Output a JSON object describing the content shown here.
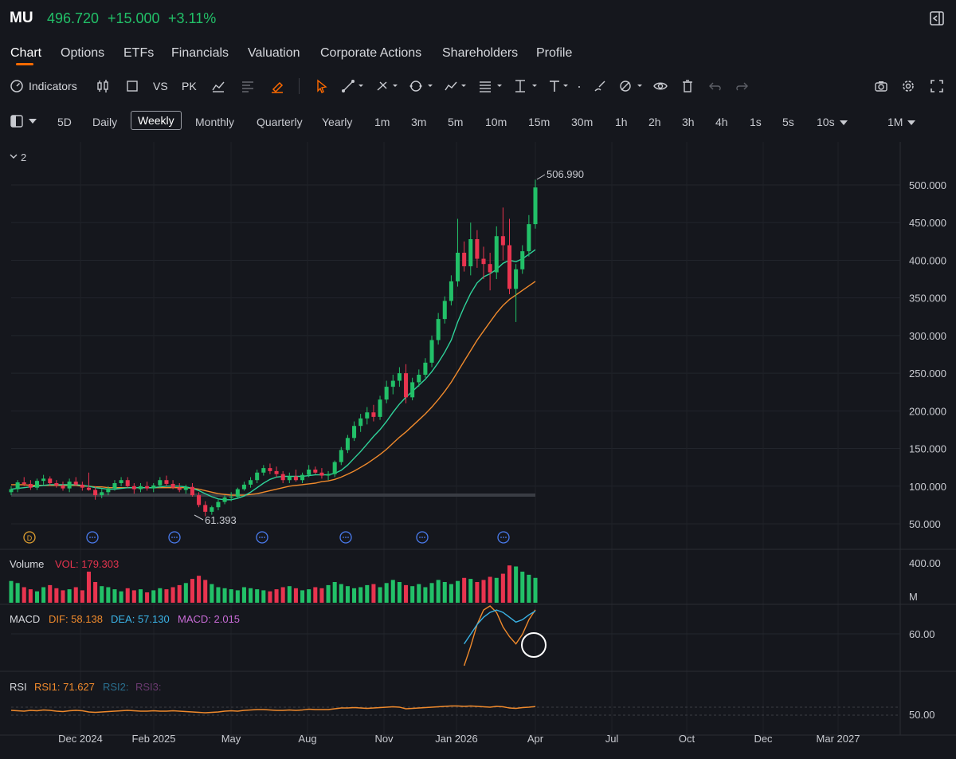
{
  "header": {
    "ticker": "MU",
    "price": "496.720",
    "change": "+15.000",
    "change_pct": "+3.11%",
    "colors": {
      "up": "#22c068",
      "down": "#e8344f",
      "accent": "#ff6a00"
    }
  },
  "tabs": [
    {
      "label": "Chart",
      "active": true
    },
    {
      "label": "Options"
    },
    {
      "label": "ETFs"
    },
    {
      "label": "Financials"
    },
    {
      "label": "Valuation"
    },
    {
      "label": "Corporate Actions"
    },
    {
      "label": "Shareholders"
    },
    {
      "label": "Profile"
    }
  ],
  "toolbar": {
    "indicators_label": "Indicators",
    "vs_label": "VS",
    "pk_label": "PK"
  },
  "periods": {
    "items": [
      "5D",
      "Daily",
      "Weekly",
      "Monthly",
      "Quarterly",
      "Yearly",
      "1m",
      "3m",
      "5m",
      "10m",
      "15m",
      "30m",
      "1h",
      "2h",
      "3h",
      "4h",
      "1s",
      "5s",
      "10s"
    ],
    "active": "Weekly",
    "range": "1M"
  },
  "main_pane": {
    "collapse_label": "2",
    "high_label": "506.990",
    "low_label": "61.393",
    "event_badge_letter": "D"
  },
  "volume_pane": {
    "title": "Volume",
    "vol_label": "VOL: 179.303",
    "axis_top": "400.00",
    "axis_unit": "M"
  },
  "macd_pane": {
    "title": "MACD",
    "dif_label": "DIF: 58.138",
    "dea_label": "DEA: 57.130",
    "macd_label": "MACD: 2.015",
    "axis_label": "60.00",
    "colors": {
      "dif": "#f08a2c",
      "dea": "#3ab3e6",
      "macd": "#c86bd6"
    }
  },
  "rsi_pane": {
    "title": "RSI",
    "rsi1_label": "RSI1: 71.627",
    "rsi2_label": "RSI2:",
    "rsi3_label": "RSI3:",
    "axis_label": "50.00",
    "colors": {
      "rsi1": "#f08a2c",
      "rsi2": "#2a6f8f",
      "rsi3": "#6b3a70"
    }
  },
  "chart_data": {
    "type": "candlestick",
    "x_axis_labels": [
      "Dec 2024",
      "Feb 2025",
      "May",
      "Aug",
      "Nov",
      "Jan 2026",
      "Apr",
      "Jul",
      "Oct",
      "Dec",
      "Mar 2027"
    ],
    "y_axis_labels": [
      "500.000",
      "450.000",
      "400.000",
      "350.000",
      "300.000",
      "250.000",
      "200.000",
      "150.000",
      "100.000",
      "50.000"
    ],
    "ylim": [
      20,
      525
    ],
    "colors": {
      "up": "#22c068",
      "down": "#e8344f",
      "ma_short": "#2fd39a",
      "ma_long": "#f08a2c"
    },
    "candles": [
      [
        92,
        100,
        88,
        96
      ],
      [
        96,
        108,
        92,
        105
      ],
      [
        105,
        112,
        100,
        103
      ],
      [
        103,
        108,
        95,
        98
      ],
      [
        98,
        110,
        95,
        107
      ],
      [
        107,
        115,
        102,
        110
      ],
      [
        110,
        113,
        100,
        104
      ],
      [
        104,
        108,
        98,
        101
      ],
      [
        101,
        106,
        94,
        97
      ],
      [
        97,
        110,
        92,
        106
      ],
      [
        106,
        112,
        100,
        102
      ],
      [
        102,
        106,
        94,
        98
      ],
      [
        98,
        118,
        94,
        95
      ],
      [
        95,
        100,
        82,
        88
      ],
      [
        88,
        96,
        84,
        92
      ],
      [
        92,
        100,
        88,
        97
      ],
      [
        97,
        108,
        94,
        104
      ],
      [
        104,
        112,
        100,
        108
      ],
      [
        108,
        112,
        98,
        100
      ],
      [
        100,
        104,
        90,
        96
      ],
      [
        96,
        104,
        92,
        100
      ],
      [
        100,
        106,
        94,
        97
      ],
      [
        97,
        104,
        92,
        101
      ],
      [
        101,
        112,
        98,
        108
      ],
      [
        108,
        114,
        100,
        103
      ],
      [
        103,
        108,
        96,
        98
      ],
      [
        98,
        104,
        92,
        95
      ],
      [
        95,
        102,
        90,
        99
      ],
      [
        99,
        104,
        86,
        88
      ],
      [
        88,
        92,
        72,
        75
      ],
      [
        75,
        80,
        60,
        66
      ],
      [
        66,
        74,
        62,
        72
      ],
      [
        72,
        82,
        68,
        79
      ],
      [
        79,
        88,
        76,
        85
      ],
      [
        85,
        92,
        80,
        86
      ],
      [
        86,
        98,
        84,
        96
      ],
      [
        96,
        106,
        94,
        102
      ],
      [
        102,
        112,
        98,
        108
      ],
      [
        108,
        122,
        104,
        118
      ],
      [
        118,
        128,
        114,
        124
      ],
      [
        124,
        130,
        116,
        120
      ],
      [
        120,
        126,
        112,
        116
      ],
      [
        116,
        120,
        104,
        108
      ],
      [
        108,
        118,
        104,
        113
      ],
      [
        113,
        122,
        106,
        108
      ],
      [
        108,
        118,
        104,
        115
      ],
      [
        115,
        128,
        112,
        122
      ],
      [
        122,
        126,
        116,
        118
      ],
      [
        118,
        124,
        110,
        114
      ],
      [
        114,
        120,
        108,
        116
      ],
      [
        116,
        134,
        112,
        132
      ],
      [
        132,
        152,
        128,
        148
      ],
      [
        148,
        168,
        144,
        164
      ],
      [
        164,
        186,
        160,
        180
      ],
      [
        180,
        196,
        172,
        190
      ],
      [
        190,
        205,
        182,
        198
      ],
      [
        198,
        208,
        186,
        192
      ],
      [
        192,
        220,
        188,
        215
      ],
      [
        215,
        240,
        210,
        232
      ],
      [
        232,
        248,
        222,
        240
      ],
      [
        240,
        258,
        232,
        250
      ],
      [
        250,
        262,
        210,
        218
      ],
      [
        218,
        244,
        214,
        238
      ],
      [
        238,
        255,
        232,
        248
      ],
      [
        248,
        270,
        244,
        264
      ],
      [
        264,
        300,
        258,
        294
      ],
      [
        294,
        330,
        288,
        322
      ],
      [
        322,
        352,
        316,
        346
      ],
      [
        346,
        380,
        340,
        372
      ],
      [
        372,
        455,
        365,
        410
      ],
      [
        410,
        425,
        385,
        392
      ],
      [
        392,
        450,
        380,
        428
      ],
      [
        428,
        440,
        390,
        402
      ],
      [
        402,
        418,
        375,
        395
      ],
      [
        395,
        410,
        360,
        384
      ],
      [
        384,
        445,
        375,
        432
      ],
      [
        432,
        470,
        400,
        420
      ],
      [
        420,
        455,
        355,
        362
      ],
      [
        362,
        395,
        318,
        388
      ],
      [
        388,
        420,
        382,
        412
      ],
      [
        412,
        460,
        405,
        448
      ],
      [
        448,
        506.99,
        442,
        496.72
      ]
    ],
    "ma_short": [
      96,
      97,
      98,
      99,
      100,
      101,
      102,
      102,
      102,
      102,
      102,
      101,
      100,
      98,
      97,
      96,
      96,
      97,
      98,
      98,
      98,
      98,
      98,
      99,
      100,
      100,
      100,
      99,
      97,
      94,
      90,
      86,
      83,
      82,
      82,
      84,
      87,
      92,
      98,
      104,
      109,
      112,
      113,
      113,
      113,
      113,
      114,
      115,
      115,
      115,
      117,
      121,
      128,
      137,
      146,
      156,
      166,
      175,
      186,
      198,
      209,
      218,
      226,
      234,
      242,
      252,
      264,
      278,
      294,
      318,
      338,
      356,
      370,
      378,
      382,
      388,
      396,
      400,
      398,
      402,
      408,
      414
    ],
    "ma_long": [
      102,
      102,
      102,
      101,
      101,
      101,
      101,
      101,
      101,
      101,
      101,
      100,
      100,
      99,
      99,
      98,
      98,
      98,
      98,
      98,
      98,
      98,
      98,
      98,
      98,
      98,
      98,
      98,
      97,
      96,
      94,
      92,
      90,
      89,
      88,
      88,
      88,
      89,
      90,
      92,
      94,
      96,
      98,
      100,
      101,
      102,
      103,
      104,
      106,
      107,
      109,
      112,
      116,
      120,
      125,
      130,
      136,
      142,
      149,
      157,
      165,
      172,
      180,
      188,
      196,
      205,
      215,
      226,
      238,
      252,
      266,
      280,
      294,
      306,
      318,
      330,
      340,
      348,
      354,
      360,
      366,
      372
    ],
    "volume": [
      42,
      38,
      30,
      26,
      22,
      30,
      34,
      28,
      24,
      26,
      30,
      24,
      60,
      40,
      32,
      30,
      26,
      22,
      28,
      24,
      26,
      20,
      24,
      28,
      26,
      30,
      34,
      38,
      46,
      52,
      44,
      36,
      30,
      28,
      26,
      24,
      30,
      28,
      26,
      24,
      22,
      26,
      30,
      32,
      28,
      24,
      26,
      30,
      28,
      34,
      40,
      36,
      32,
      28,
      30,
      34,
      36,
      30,
      38,
      44,
      40,
      34,
      32,
      36,
      30,
      38,
      44,
      40,
      36,
      42,
      48,
      46,
      40,
      44,
      50,
      48,
      56,
      72,
      70,
      60,
      54,
      48
    ],
    "volume_axis_max": 400,
    "macd": {
      "dif": [
        12,
        28,
        46,
        58,
        62,
        56,
        44,
        36,
        30,
        38,
        50,
        58.138
      ],
      "dea": [
        30,
        38,
        46,
        52,
        56,
        58,
        56,
        52,
        48,
        50,
        54,
        57.13
      ]
    },
    "rsi1": [
      62,
      61,
      60,
      62,
      61,
      63,
      62,
      60,
      59,
      61,
      62,
      61,
      58,
      57,
      58,
      59,
      60,
      61,
      62,
      61,
      60,
      60,
      61,
      60,
      60,
      61,
      60,
      59,
      58,
      57,
      56,
      57,
      58,
      60,
      61,
      60,
      62,
      63,
      64,
      64,
      63,
      62,
      62,
      63,
      62,
      63,
      65,
      64,
      64,
      64,
      66,
      68,
      68,
      69,
      68,
      67,
      68,
      69,
      70,
      71,
      70,
      66,
      67,
      68,
      69,
      70,
      71,
      72,
      73,
      73,
      72,
      73,
      72,
      71,
      70,
      72,
      71,
      68,
      67,
      69,
      70,
      71.627
    ]
  }
}
